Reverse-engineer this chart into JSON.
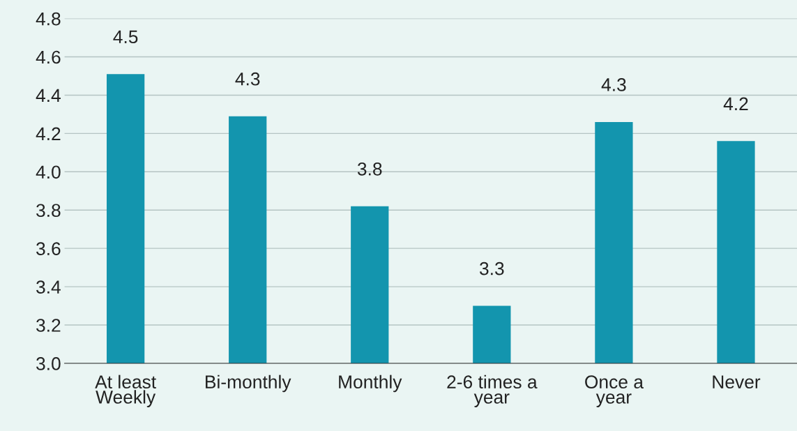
{
  "chart_data": {
    "type": "bar",
    "categories": [
      "At least\nWeekly",
      "Bi-monthly",
      "Monthly",
      "2-6 times a\nyear",
      "Once a\nyear",
      "Never"
    ],
    "values": [
      4.51,
      4.29,
      3.82,
      3.3,
      4.26,
      4.16
    ],
    "value_labels": [
      "4.5",
      "4.3",
      "3.8",
      "3.3",
      "4.3",
      "4.2"
    ],
    "color": "#1395ae",
    "ylim": [
      3.0,
      4.8
    ],
    "yticks": [
      "3.0",
      "3.2",
      "3.4",
      "3.6",
      "3.8",
      "4.0",
      "4.2",
      "4.4",
      "4.6",
      "4.8"
    ],
    "grid": "y"
  }
}
